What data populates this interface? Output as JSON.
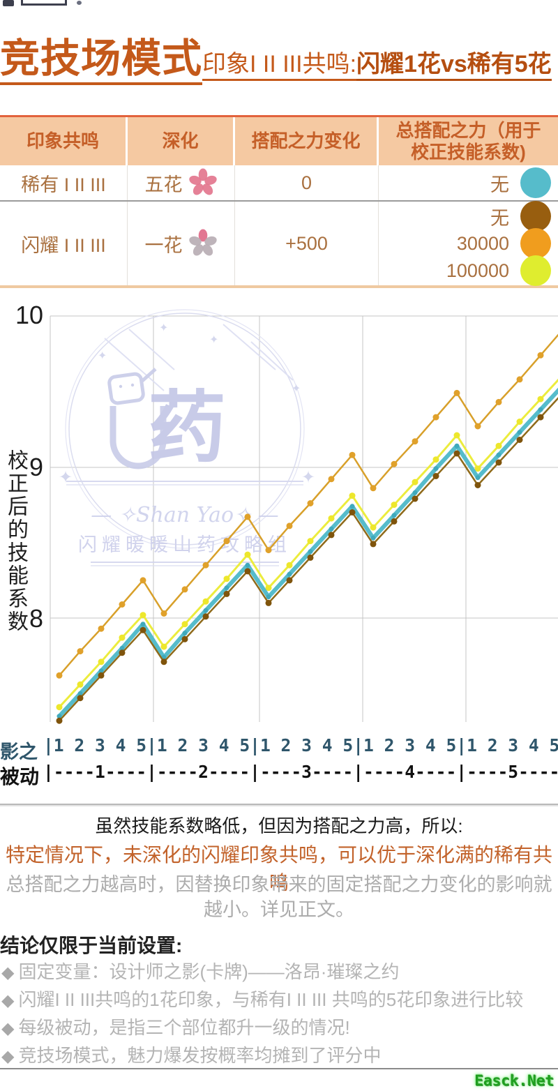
{
  "title": {
    "main": "竞技场模式",
    "sub": "印象I II III共鸣:",
    "highlight": "闪耀1花vs稀有5花",
    "accent_color": "#C4591A"
  },
  "table": {
    "columns": {
      "col1": "印象共鸣",
      "col2": "深化",
      "col3": "搭配之力变化",
      "col4_line1": "总搭配之力（用于",
      "col4_line2": "校正技能系数)"
    },
    "rows": [
      {
        "resonance": "稀有 I II III",
        "deepen": "五花",
        "flower": "five-pink-petals",
        "delta": "0",
        "totals": [
          {
            "label": "无",
            "color": "#56BCCB"
          }
        ]
      },
      {
        "resonance": "闪耀 I II III",
        "deepen": "一花",
        "flower": "one-pink-four-gray-petals",
        "delta": "+500",
        "totals": [
          {
            "label": "无",
            "color": "#985E0F"
          },
          {
            "label": "30000",
            "color": "#F09D1E"
          },
          {
            "label": "100000",
            "color": "#DFED2F"
          }
        ]
      }
    ],
    "header_bg": "#F5C9A2",
    "header_text_color": "#C55F28",
    "body_text_color": "#A9703F"
  },
  "chart_data": {
    "type": "line",
    "title": "",
    "ylabel": "校正后的技能系数",
    "y_ticks": [
      "10",
      "9",
      "8"
    ],
    "ylim": [
      7.3,
      10.05
    ],
    "grid": "horizontal lines at 8/9/10, vertical lines at passive-group boundaries",
    "x_structure": "5 groups (被动 level 1-5), each with 影之 sub-levels 1-5, 25 points per series",
    "x_axis": {
      "row1_label": "影之",
      "row1_ticks": "|1 2 3 4 5|1 2 3 4 5|1 2 3 4 5|1 2 3 4 5|1 2 3 4 5",
      "row2_label": "被动",
      "row2_ticks": "|----1----|----2----|----3----|----4----|----5----|"
    },
    "series": [
      {
        "name": "稀有 I II III 五花 总搭配之力:无",
        "color": "#56BCCB",
        "marker_color": "#3FA9BC",
        "line_width": 6,
        "marker_r": 3.5,
        "values": [
          7.35,
          7.5,
          7.65,
          7.8,
          7.96,
          7.74,
          7.9,
          8.05,
          8.2,
          8.35,
          8.14,
          8.29,
          8.44,
          8.59,
          8.74,
          8.53,
          8.68,
          8.83,
          8.99,
          9.14,
          8.93,
          9.08,
          9.23,
          9.38,
          9.53
        ]
      },
      {
        "name": "闪耀 I II III 一花 总搭配之力:无",
        "color": "#8F6A1A",
        "marker_color": "#7F540C",
        "line_width": 2.5,
        "marker_r": 4.5,
        "values": [
          7.32,
          7.47,
          7.62,
          7.77,
          7.92,
          7.71,
          7.86,
          8.01,
          8.16,
          8.31,
          8.1,
          8.25,
          8.4,
          8.55,
          8.7,
          8.49,
          8.64,
          8.79,
          8.94,
          9.09,
          8.88,
          9.03,
          9.18,
          9.33,
          9.48
        ]
      },
      {
        "name": "闪耀 I II III 一花 总搭配之力:30000",
        "color": "#D8A02A",
        "marker_color": "#E0A12B",
        "line_width": 2.5,
        "marker_r": 4.5,
        "values": [
          7.62,
          7.78,
          7.93,
          8.09,
          8.25,
          8.03,
          8.19,
          8.35,
          8.51,
          8.67,
          8.45,
          8.61,
          8.76,
          8.92,
          9.08,
          8.86,
          9.02,
          9.17,
          9.33,
          9.49,
          9.27,
          9.43,
          9.58,
          9.74,
          9.9
        ]
      },
      {
        "name": "闪耀 I II III 一花 总搭配之力:100000",
        "color": "#ECEC3D",
        "marker_color": "#EDE72C",
        "line_width": 3,
        "marker_r": 4.5,
        "values": [
          7.41,
          7.56,
          7.71,
          7.87,
          8.02,
          7.81,
          7.96,
          8.11,
          8.26,
          8.42,
          8.2,
          8.35,
          8.51,
          8.66,
          8.81,
          8.6,
          8.75,
          8.9,
          9.05,
          9.21,
          8.99,
          9.14,
          9.3,
          9.45,
          9.6
        ]
      }
    ],
    "watermark": {
      "char": "药",
      "script": "— ✧Shan Yao✧ —",
      "org": "闪耀暖暖山药攻略组"
    }
  },
  "notes": {
    "line1": "虽然技能系数略低，但因为搭配之力高，所以:",
    "line2": "特定情况下，未深化的闪耀印象共鸣，可以优于深化满的稀有共鸣",
    "line3": "总搭配之力越高时，因替换印象带来的固定搭配之力变化的影响就越小。详见正文。",
    "heading": "结论仅限于当前设置:",
    "bullet_icon": "◆",
    "bullets": [
      "固定变量：设计师之影(卡牌)——洛昂·璀璨之约",
      "闪耀I II III共鸣的1花印象，与稀有I II III 共鸣的5花印象进行比较",
      "每级被动，是指三个部位都升一级的情况!",
      "竞技场模式，魅力爆发按概率均摊到了评分中"
    ]
  },
  "footer": {
    "watermark": "Easck.Net",
    "color": "#2BB52B"
  }
}
